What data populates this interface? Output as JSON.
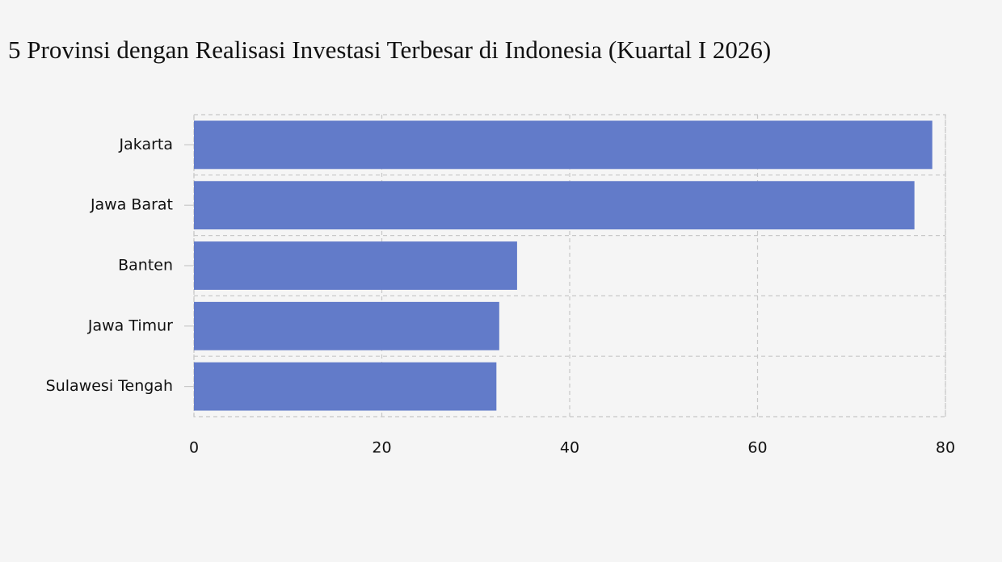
{
  "chart_data": {
    "type": "hbar",
    "title": "5 Provinsi dengan Realisasi Investasi Terbesar di Indonesia (Kuartal I 2026)",
    "categories": [
      "Jakarta",
      "Jawa Barat",
      "Banten",
      "Jawa Timur",
      "Sulawesi Tengah"
    ],
    "values": [
      78.6,
      76.7,
      34.4,
      32.5,
      32.2
    ],
    "color": "#627bc9",
    "xlim": [
      0,
      80
    ],
    "xticks": [
      0,
      20,
      40,
      60,
      80
    ],
    "grid": true
  }
}
